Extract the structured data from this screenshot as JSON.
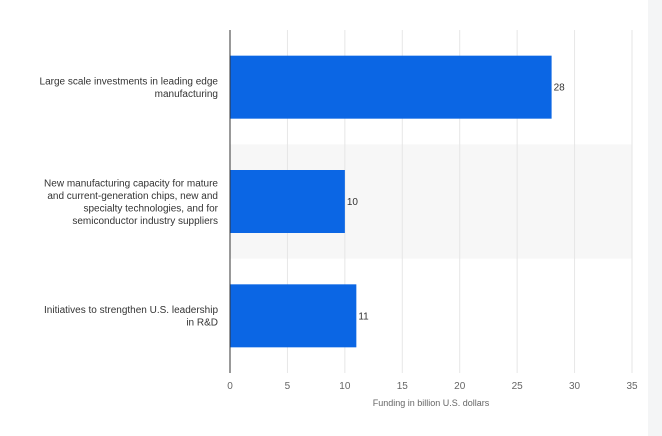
{
  "chart_data": {
    "type": "bar",
    "orientation": "horizontal",
    "categories": [
      [
        "Large scale investments in leading edge",
        "manufacturing"
      ],
      [
        "New manufacturing capacity for mature",
        "and current-generation chips, new and",
        "specialty technologies, and for",
        "semiconductor industry suppliers"
      ],
      [
        "Initiatives to strengthen U.S. leadership",
        "in R&D"
      ]
    ],
    "values": [
      28,
      10,
      11
    ],
    "value_labels": [
      "28",
      "10",
      "11"
    ],
    "xlabel": "Funding in billion U.S. dollars",
    "xlim": [
      0,
      35
    ],
    "xticks": [
      0,
      5,
      10,
      15,
      20,
      25,
      30,
      35
    ],
    "xtick_labels": [
      "0",
      "5",
      "10",
      "15",
      "20",
      "25",
      "30",
      "35"
    ],
    "grid": "vertical",
    "colors": {
      "bar": "#0b66e4",
      "band": "#f7f7f7",
      "grid": "#e6e6e6",
      "axis": "#333333"
    }
  }
}
